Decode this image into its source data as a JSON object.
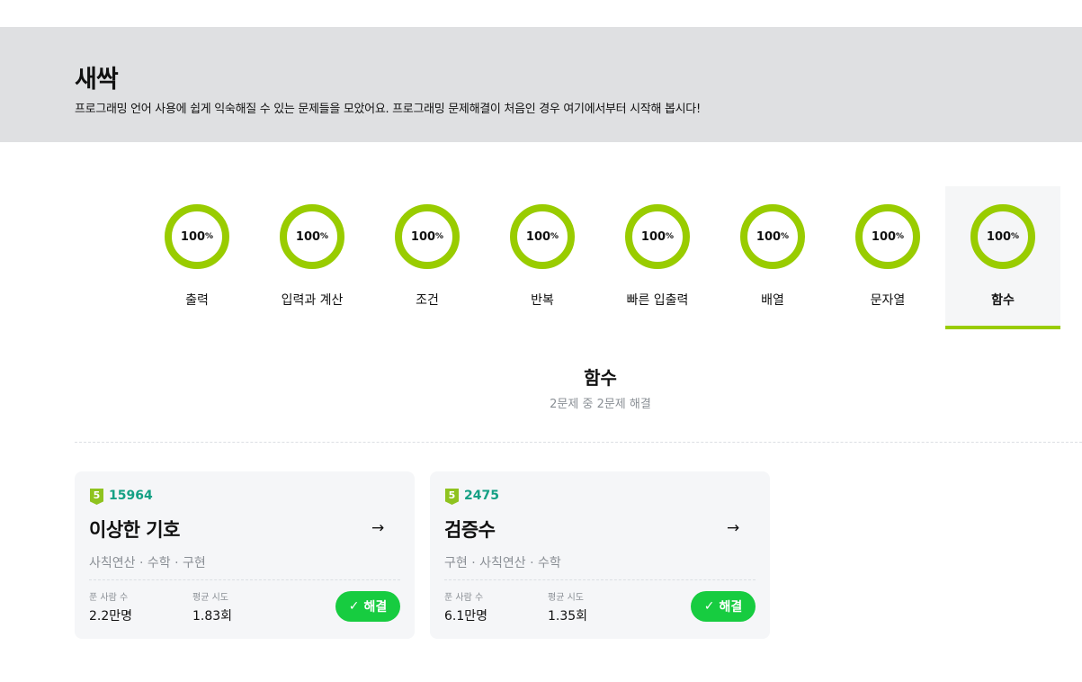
{
  "header": {
    "title": "새싹",
    "description": "프로그래밍 언어 사용에 쉽게 익숙해질 수 있는 문제들을 모았어요. 프로그래밍 문제해결이 처음인 경우 여기에서부터 시작해 봅시다!"
  },
  "accent": "#99cc00",
  "tabs": [
    {
      "label": "출력",
      "progress": "100",
      "unit": "%"
    },
    {
      "label": "입력과 계산",
      "progress": "100",
      "unit": "%"
    },
    {
      "label": "조건",
      "progress": "100",
      "unit": "%"
    },
    {
      "label": "반복",
      "progress": "100",
      "unit": "%"
    },
    {
      "label": "빠른 입출력",
      "progress": "100",
      "unit": "%"
    },
    {
      "label": "배열",
      "progress": "100",
      "unit": "%"
    },
    {
      "label": "문자열",
      "progress": "100",
      "unit": "%"
    },
    {
      "label": "함수",
      "progress": "100",
      "unit": "%",
      "active": true
    }
  ],
  "section": {
    "title": "함수",
    "subtitle": "2문제 중 2문제 해결"
  },
  "problems": [
    {
      "level": "5",
      "id": "15964",
      "title": "이상한 기호",
      "tags": "사칙연산 · 수학 · 구현",
      "solvers_label": "푼 사람 수",
      "solvers": "2.2만명",
      "attempts_label": "평균 시도",
      "attempts": "1.83회",
      "status": "해결"
    },
    {
      "level": "5",
      "id": "2475",
      "title": "검증수",
      "tags": "구현 · 사칙연산 · 수학",
      "solvers_label": "푼 사람 수",
      "solvers": "6.1만명",
      "attempts_label": "평균 시도",
      "attempts": "1.35회",
      "status": "해결"
    }
  ]
}
